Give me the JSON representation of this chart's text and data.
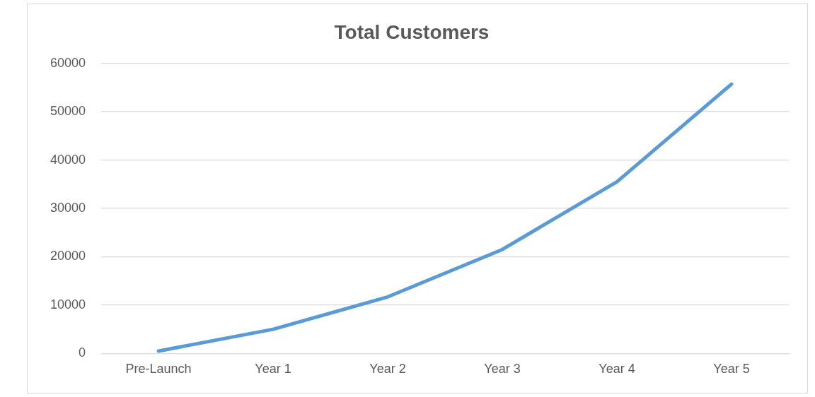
{
  "chart_data": {
    "type": "line",
    "title": "Total Customers",
    "categories": [
      "Pre-Launch",
      "Year 1",
      "Year 2",
      "Year 3",
      "Year 4",
      "Year 5"
    ],
    "series": [
      {
        "color": "#5b9bd5",
        "values": [
          500,
          5000,
          11700,
          21500,
          35500,
          55700
        ]
      }
    ],
    "ylim": [
      0,
      60000
    ],
    "yticks": [
      0,
      10000,
      20000,
      30000,
      40000,
      50000,
      60000
    ],
    "grid": "y",
    "legend": false,
    "marker": "none",
    "line_style": "solid"
  }
}
